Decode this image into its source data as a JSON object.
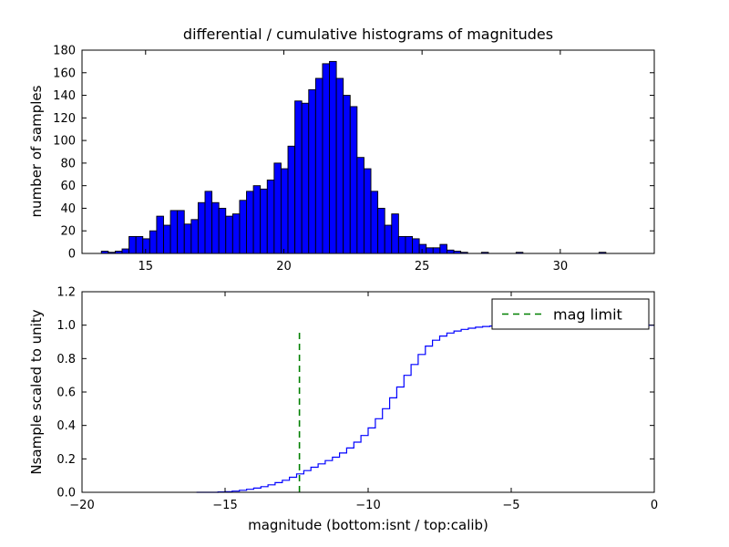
{
  "figure": {
    "background": "#ffffff"
  },
  "chart_data": [
    {
      "type": "bar",
      "title": "differential / cumulative histograms of magnitudes",
      "xlabel": "",
      "ylabel": "number of samples",
      "xlim": [
        12.7,
        33.4
      ],
      "ylim": [
        0,
        180
      ],
      "xticks": [
        15,
        20,
        25,
        30
      ],
      "xtick_labels": [
        "15",
        "20",
        "25",
        "30"
      ],
      "yticks": [
        0,
        20,
        40,
        60,
        80,
        100,
        120,
        140,
        160,
        180
      ],
      "ytick_labels": [
        "0",
        "20",
        "40",
        "60",
        "80",
        "100",
        "120",
        "140",
        "160",
        "180"
      ],
      "grid": false,
      "bin_start": 13.4,
      "bin_width": 0.25,
      "values": [
        2,
        1,
        2,
        4,
        15,
        15,
        13,
        20,
        33,
        25,
        38,
        38,
        26,
        30,
        45,
        55,
        45,
        40,
        33,
        35,
        47,
        55,
        60,
        57,
        65,
        80,
        75,
        95,
        135,
        133,
        145,
        155,
        168,
        170,
        155,
        140,
        130,
        85,
        75,
        55,
        40,
        25,
        35,
        15,
        15,
        13,
        8,
        5,
        5,
        8,
        3,
        2,
        1,
        0,
        0,
        1,
        0,
        0,
        0,
        0,
        1,
        0,
        0,
        0,
        0,
        0,
        0,
        0,
        0,
        0,
        0,
        0,
        1
      ],
      "bar_color": "#0000ff",
      "bar_edge_color": "#000000"
    },
    {
      "type": "line",
      "title": "",
      "xlabel": "magnitude (bottom:isnt / top:calib)",
      "ylabel": "Nsample scaled to unity",
      "xlim": [
        -20,
        0
      ],
      "ylim": [
        0,
        1.2
      ],
      "xticks": [
        -20,
        -15,
        -10,
        -5,
        0
      ],
      "xtick_labels": [
        "−20",
        "−15",
        "−10",
        "−5",
        "0"
      ],
      "yticks": [
        0,
        0.2,
        0.4,
        0.6,
        0.8,
        1.0,
        1.2
      ],
      "ytick_labels": [
        "0.0",
        "0.2",
        "0.4",
        "0.6",
        "0.8",
        "1.0",
        "1.2"
      ],
      "grid": false,
      "line_color": "#0000ff",
      "step_points": [
        [
          -16,
          0
        ],
        [
          -15.25,
          0.002
        ],
        [
          -15,
          0.004
        ],
        [
          -14.75,
          0.007
        ],
        [
          -14.5,
          0.012
        ],
        [
          -14.25,
          0.018
        ],
        [
          -14,
          0.025
        ],
        [
          -13.75,
          0.034
        ],
        [
          -13.5,
          0.045
        ],
        [
          -13.25,
          0.058
        ],
        [
          -13,
          0.072
        ],
        [
          -12.75,
          0.09
        ],
        [
          -12.5,
          0.11
        ],
        [
          -12.25,
          0.13
        ],
        [
          -12,
          0.15
        ],
        [
          -11.75,
          0.17
        ],
        [
          -11.5,
          0.19
        ],
        [
          -11.25,
          0.21
        ],
        [
          -11,
          0.235
        ],
        [
          -10.75,
          0.265
        ],
        [
          -10.5,
          0.3
        ],
        [
          -10.25,
          0.34
        ],
        [
          -10,
          0.385
        ],
        [
          -9.75,
          0.44
        ],
        [
          -9.5,
          0.5
        ],
        [
          -9.25,
          0.565
        ],
        [
          -9,
          0.63
        ],
        [
          -8.75,
          0.7
        ],
        [
          -8.5,
          0.765
        ],
        [
          -8.25,
          0.825
        ],
        [
          -8,
          0.875
        ],
        [
          -7.75,
          0.91
        ],
        [
          -7.5,
          0.935
        ],
        [
          -7.25,
          0.953
        ],
        [
          -7,
          0.965
        ],
        [
          -6.75,
          0.975
        ],
        [
          -6.5,
          0.982
        ],
        [
          -6.25,
          0.988
        ],
        [
          -6,
          0.992
        ],
        [
          -5.75,
          0.995
        ],
        [
          -5.5,
          0.997
        ],
        [
          -5.25,
          0.998
        ],
        [
          -5,
          0.999
        ],
        [
          -4.75,
          1
        ],
        [
          0,
          1
        ]
      ],
      "mag_limit_line": {
        "x": -12.4,
        "y0": 0,
        "y1": 0.97,
        "color": "#008000",
        "style": "dashed"
      },
      "legend": {
        "label": "mag limit",
        "position": "upper right",
        "line_color": "#008000",
        "line_style": "dashed"
      }
    }
  ]
}
